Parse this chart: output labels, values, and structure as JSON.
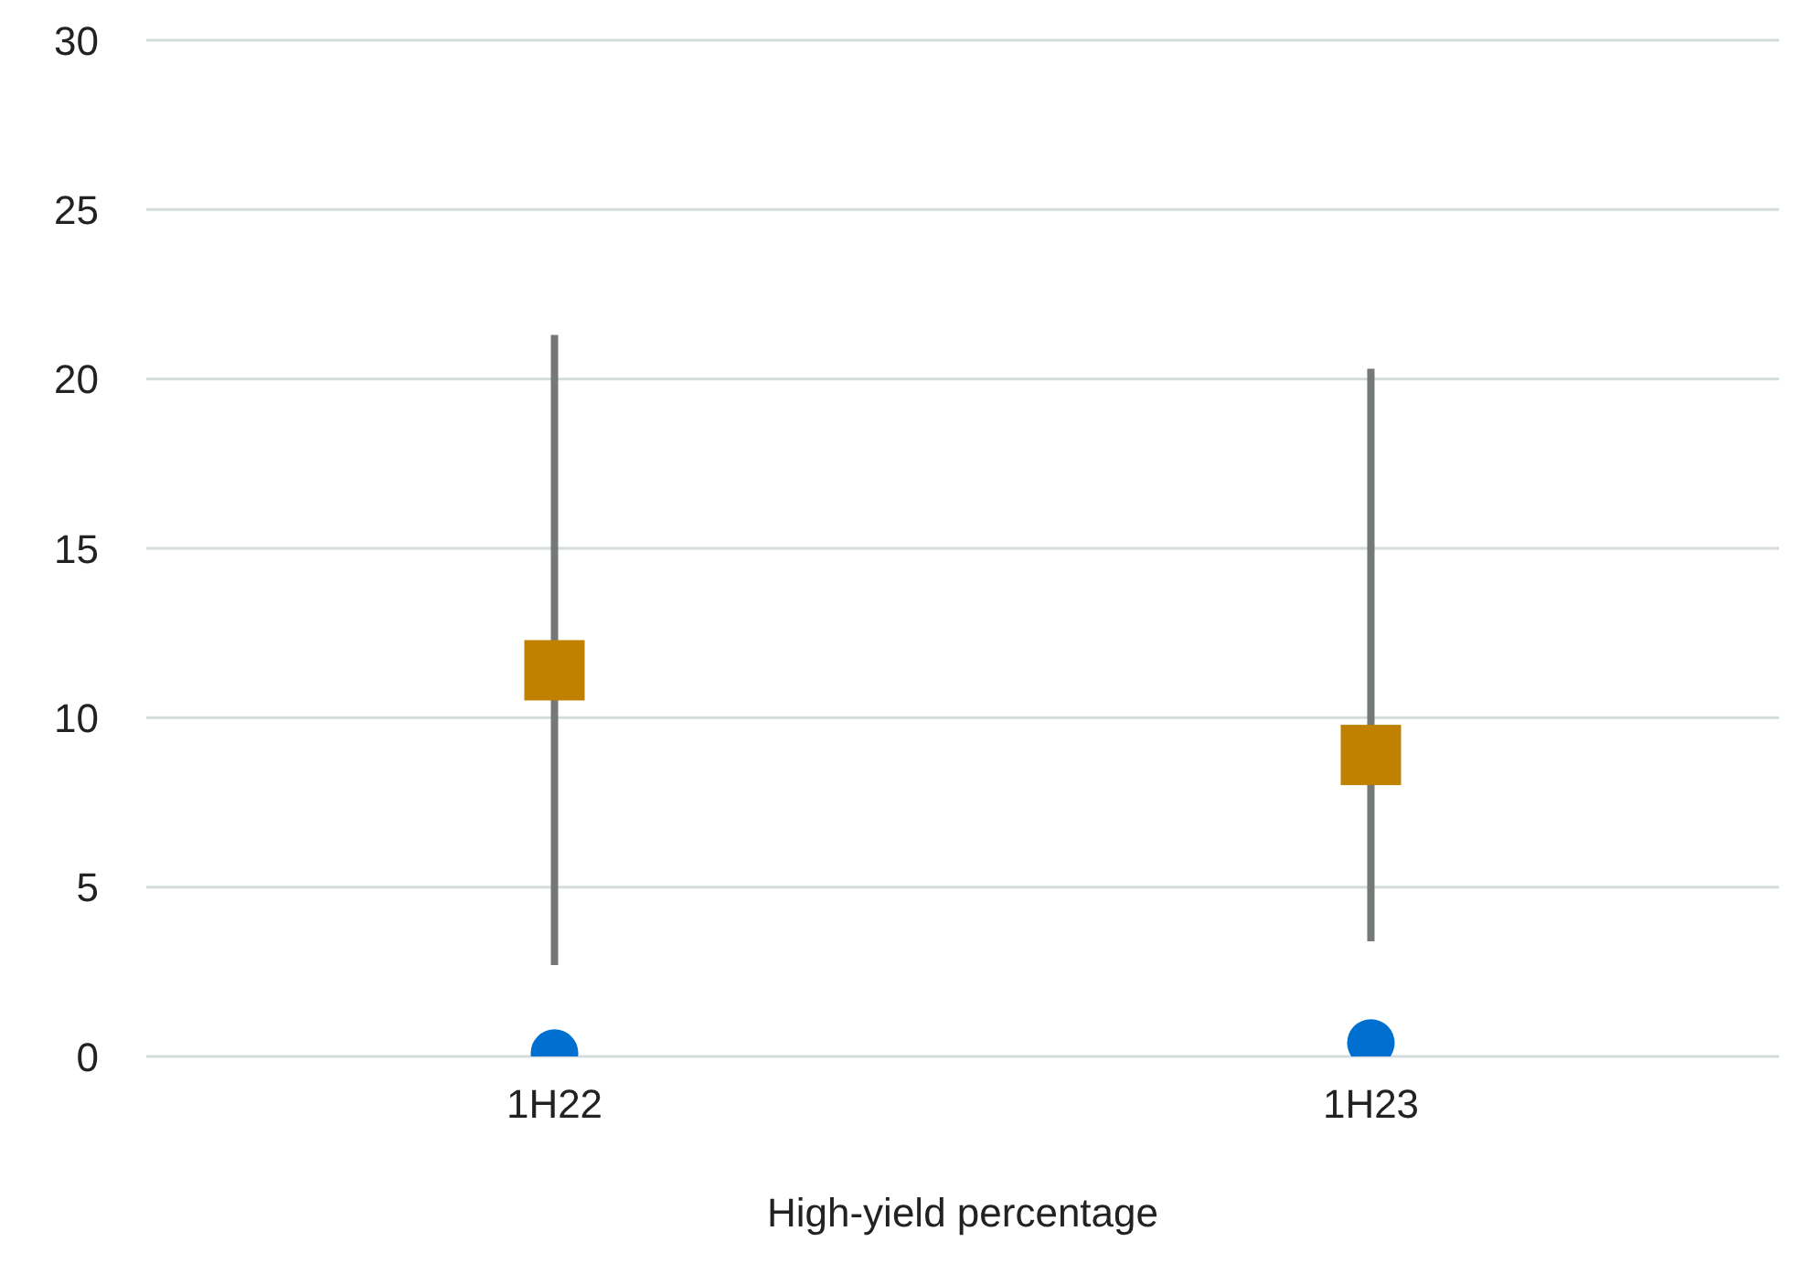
{
  "chart_data": {
    "type": "scatter",
    "xlabel": "High-yield percentage",
    "categories": [
      "1H22",
      "1H23"
    ],
    "series": [
      {
        "marker": "square",
        "color": "#c08000",
        "values": [
          11.4,
          8.9
        ],
        "errors": [
          [
            2.7,
            21.3
          ],
          [
            3.4,
            20.3
          ]
        ]
      },
      {
        "marker": "circle",
        "color": "#0070d0",
        "values": [
          0.1,
          0.4
        ]
      }
    ],
    "ylim": [
      0,
      30
    ],
    "yticks": [
      0,
      5,
      10,
      15,
      20,
      25,
      30
    ],
    "grid": "y"
  }
}
